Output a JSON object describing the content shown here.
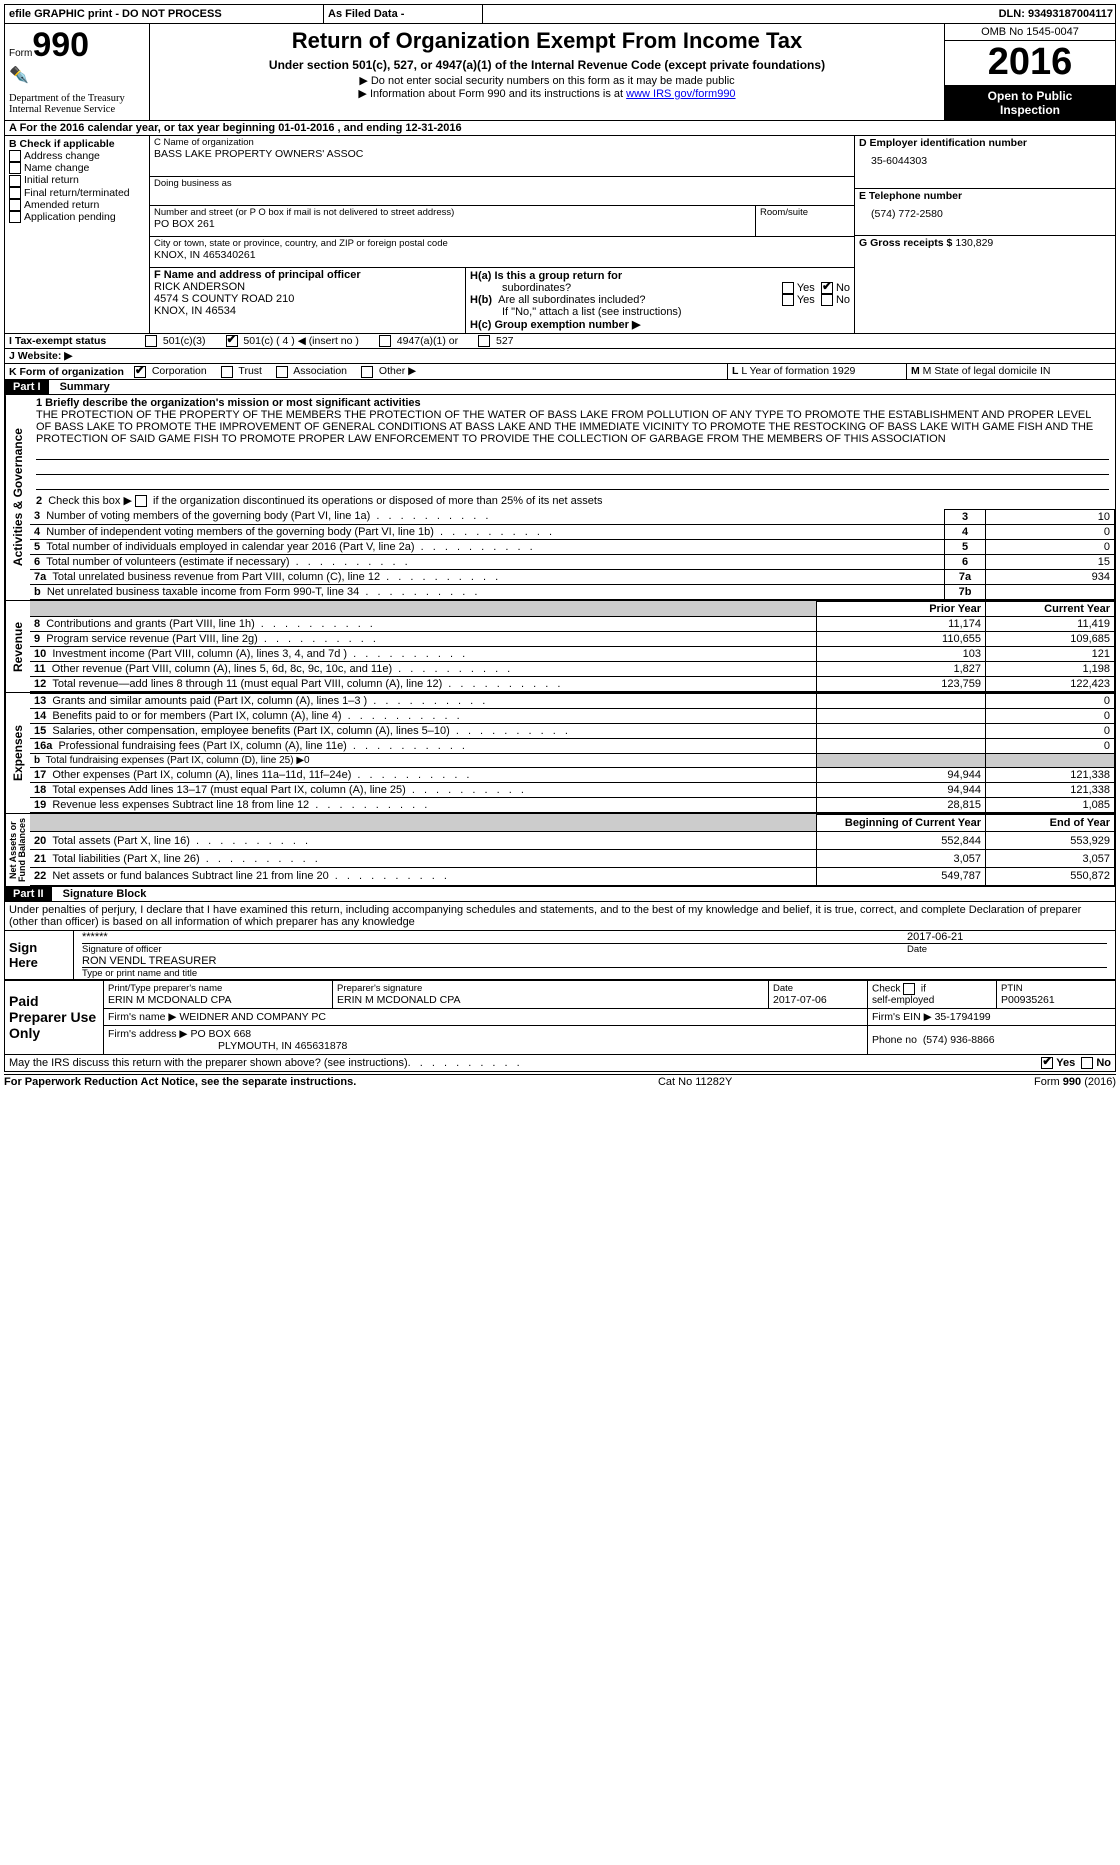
{
  "topbar": {
    "efile": "efile GRAPHIC print - DO NOT PROCESS",
    "asfiled": "As Filed Data -",
    "dln_label": "DLN:",
    "dln": "93493187004117"
  },
  "header": {
    "form_label": "Form",
    "form_no": "990",
    "dept1": "Department of the Treasury",
    "dept2": "Internal Revenue Service",
    "title": "Return of Organization Exempt From Income Tax",
    "subtitle": "Under section 501(c), 527, or 4947(a)(1) of the Internal Revenue Code (except private foundations)",
    "arrow1": "▶ Do not enter social security numbers on this form as it may be made public",
    "arrow2_pre": "▶ Information about Form 990 and its instructions is at ",
    "arrow2_link": "www IRS gov/form990",
    "omb": "OMB No  1545-0047",
    "year": "2016",
    "open1": "Open to Public",
    "open2": "Inspection"
  },
  "lineA": "A   For the 2016 calendar year, or tax year beginning 01-01-2016   , and ending 12-31-2016",
  "colB": {
    "label": "B Check if applicable",
    "items": [
      "Address change",
      "Name change",
      "Initial return",
      "Final return/terminated",
      "Amended return",
      "Application pending"
    ]
  },
  "colC": {
    "name_label": "C Name of organization",
    "name": "BASS LAKE PROPERTY OWNERS' ASSOC",
    "dba_label": "Doing business as",
    "dba": "",
    "addr_label": "Number and street (or P O  box if mail is not delivered to street address)",
    "room_label": "Room/suite",
    "addr": "PO BOX 261",
    "city_label": "City or town, state or province, country, and ZIP or foreign postal code",
    "city": "KNOX, IN  465340261",
    "f_label": "F Name and address of principal officer",
    "f_name": "RICK ANDERSON",
    "f_addr1": "4574 S COUNTY ROAD 210",
    "f_addr2": "KNOX, IN  46534"
  },
  "colD": {
    "d_label": "D Employer identification number",
    "d_val": "35-6044303",
    "e_label": "E Telephone number",
    "e_val": "(574) 772-2580",
    "g_label": "G Gross receipts $",
    "g_val": "130,829",
    "ha": "H(a)  Is this a group return for",
    "ha2": "subordinates?",
    "hb": "H(b)  Are all subordinates included?",
    "hb_note": "If \"No,\" attach a list  (see instructions)",
    "hc": "H(c)  Group exemption number ▶",
    "yes": "Yes",
    "no": "No"
  },
  "rowI": {
    "label": "I   Tax-exempt status",
    "opts": [
      "501(c)(3)",
      "501(c) ( 4 ) ◀ (insert no )",
      "4947(a)(1) or",
      "527"
    ],
    "checked": 1
  },
  "rowJ": "J   Website: ▶",
  "rowK": {
    "label": "K Form of organization",
    "opts": [
      "Corporation",
      "Trust",
      "Association",
      "Other ▶"
    ],
    "checked": 0,
    "l_label": "L Year of formation  1929",
    "m_label": "M State of legal domicile  IN"
  },
  "part1_label": "Part I",
  "part1_title": "Summary",
  "mission_label": "1  Briefly describe the organization's mission or most significant activities",
  "mission": "THE PROTECTION OF THE PROPERTY OF THE MEMBERS  THE PROTECTION OF THE WATER OF BASS LAKE FROM POLLUTION OF ANY TYPE TO PROMOTE THE ESTABLISHMENT AND PROPER LEVEL OF BASS LAKE TO PROMOTE THE IMPROVEMENT OF GENERAL CONDITIONS AT BASS LAKE AND THE IMMEDIATE VICINITY TO PROMOTE THE RESTOCKING OF BASS LAKE WITH GAME FISH AND THE PROTECTION OF SAID GAME FISH TO PROMOTE PROPER LAW ENFORCEMENT TO PROVIDE THE COLLECTION OF GARBAGE FROM THE MEMBERS OF THIS ASSOCIATION",
  "line2": "2   Check this box ▶        if the organization discontinued its operations or disposed of more than 25% of its net assets",
  "gov_rows": [
    {
      "n": "3",
      "text": "Number of voting members of the governing body (Part VI, line 1a)",
      "val": "10"
    },
    {
      "n": "4",
      "text": "Number of independent voting members of the governing body (Part VI, line 1b)",
      "val": "0"
    },
    {
      "n": "5",
      "text": "Total number of individuals employed in calendar year 2016 (Part V, line 2a)",
      "val": "0"
    },
    {
      "n": "6",
      "text": "Total number of volunteers (estimate if necessary)",
      "val": "15"
    },
    {
      "n": "7a",
      "text": "Total unrelated business revenue from Part VIII, column (C), line 12",
      "val": "934"
    },
    {
      "n": "b",
      "text": "Net unrelated business taxable income from Form 990-T, line 34",
      "n2": "7b",
      "val": ""
    }
  ],
  "py_label": "Prior Year",
  "cy_label": "Current Year",
  "rev_rows": [
    {
      "n": "8",
      "text": "Contributions and grants (Part VIII, line 1h)",
      "py": "11,174",
      "cy": "11,419"
    },
    {
      "n": "9",
      "text": "Program service revenue (Part VIII, line 2g)",
      "py": "110,655",
      "cy": "109,685"
    },
    {
      "n": "10",
      "text": "Investment income (Part VIII, column (A), lines 3, 4, and 7d )",
      "py": "103",
      "cy": "121"
    },
    {
      "n": "11",
      "text": "Other revenue (Part VIII, column (A), lines 5, 6d, 8c, 9c, 10c, and 11e)",
      "py": "1,827",
      "cy": "1,198"
    },
    {
      "n": "12",
      "text": "Total revenue—add lines 8 through 11 (must equal Part VIII, column (A), line 12)",
      "py": "123,759",
      "cy": "122,423"
    }
  ],
  "exp_rows": [
    {
      "n": "13",
      "text": "Grants and similar amounts paid (Part IX, column (A), lines 1–3 )",
      "py": "",
      "cy": "0"
    },
    {
      "n": "14",
      "text": "Benefits paid to or for members (Part IX, column (A), line 4)",
      "py": "",
      "cy": "0"
    },
    {
      "n": "15",
      "text": "Salaries, other compensation, employee benefits (Part IX, column (A), lines 5–10)",
      "py": "",
      "cy": "0"
    },
    {
      "n": "16a",
      "text": "Professional fundraising fees (Part IX, column (A), line 11e)",
      "py": "",
      "cy": "0"
    },
    {
      "n": "b",
      "text": "Total fundraising expenses (Part IX, column (D), line 25) ▶0",
      "py": "-",
      "cy": "-",
      "shade": true,
      "small": true
    },
    {
      "n": "17",
      "text": "Other expenses (Part IX, column (A), lines 11a–11d, 11f–24e)",
      "py": "94,944",
      "cy": "121,338"
    },
    {
      "n": "18",
      "text": "Total expenses  Add lines 13–17 (must equal Part IX, column (A), line 25)",
      "py": "94,944",
      "cy": "121,338"
    },
    {
      "n": "19",
      "text": "Revenue less expenses  Subtract line 18 from line 12",
      "py": "28,815",
      "cy": "1,085"
    }
  ],
  "na_hdr": {
    "py": "Beginning of Current Year",
    "cy": "End of Year"
  },
  "na_rows": [
    {
      "n": "20",
      "text": "Total assets (Part X, line 16)",
      "py": "552,844",
      "cy": "553,929"
    },
    {
      "n": "21",
      "text": "Total liabilities (Part X, line 26)",
      "py": "3,057",
      "cy": "3,057"
    },
    {
      "n": "22",
      "text": "Net assets or fund balances  Subtract line 21 from line 20",
      "py": "549,787",
      "cy": "550,872"
    }
  ],
  "part2_label": "Part II",
  "part2_title": "Signature Block",
  "perjury": "Under penalties of perjury, I declare that I have examined this return, including accompanying schedules and statements, and to the best of my knowledge and belief, it is true, correct, and complete  Declaration of preparer (other than officer) is based on all information of which preparer has any knowledge",
  "sign": {
    "here": "Sign Here",
    "stars": "******",
    "sig_label": "Signature of officer",
    "date": "2017-06-21",
    "date_label": "Date",
    "name": "RON VENDL TREASURER",
    "name_label": "Type or print name and title"
  },
  "paid": {
    "label": "Paid Preparer Use Only",
    "pname_label": "Print/Type preparer's name",
    "pname": "ERIN M MCDONALD CPA",
    "psig_label": "Preparer's signature",
    "psig": "ERIN M MCDONALD CPA",
    "pdate_label": "Date",
    "pdate": "2017-07-06",
    "check_label": "Check         if self-employed",
    "ptin_label": "PTIN",
    "ptin": "P00935261",
    "firm_label": "Firm's name      ▶",
    "firm": "WEIDNER AND COMPANY PC",
    "ein_label": "Firm's EIN ▶",
    "ein": "35-1794199",
    "addr_label": "Firm's address ▶",
    "addr1": "PO BOX 668",
    "addr2": "PLYMOUTH, IN  465631878",
    "phone_label": "Phone no",
    "phone": "(574) 936-8866"
  },
  "discuss": "May the IRS discuss this return with the preparer shown above? (see instructions)",
  "footer": {
    "left": "For Paperwork Reduction Act Notice, see the separate instructions.",
    "mid": "Cat No  11282Y",
    "right": "Form 990 (2016)"
  },
  "vert": {
    "gov": "Activities & Governance",
    "rev": "Revenue",
    "exp": "Expenses",
    "na": "Net Assets or\nFund Balances"
  }
}
